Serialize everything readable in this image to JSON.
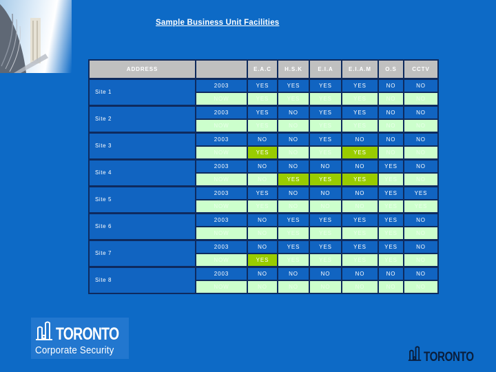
{
  "slide": {
    "title": "Sample Business Unit Facilities",
    "colors": {
      "background": "#0d6ac6",
      "cell_blue": "#1164c1",
      "now_green": "#ccffcc",
      "highlight_green": "#99cc00",
      "header_gray": "#c0c0c0",
      "border_navy": "#0e2a5e"
    }
  },
  "table": {
    "headers": [
      "ADDRESS",
      "",
      "E.A.C",
      "H.S.K",
      "E.I.A",
      "E.I.A.M",
      "O.S",
      "CCTV"
    ],
    "row_labels": {
      "year": "2003",
      "now": "NOW"
    },
    "sites": [
      {
        "name": "Site 1",
        "y2003": [
          "YES",
          "YES",
          "YES",
          "YES",
          "NO",
          "NO"
        ],
        "now": [
          "YES",
          "YES",
          "YES",
          "YES",
          "NO",
          "NO"
        ],
        "now_highlight": [
          false,
          false,
          false,
          false,
          false,
          false
        ]
      },
      {
        "name": "Site 2",
        "y2003": [
          "YES",
          "NO",
          "YES",
          "YES",
          "NO",
          "NO"
        ],
        "now": [
          "YES",
          "NO",
          "YES",
          "YES",
          "NO",
          "NO"
        ],
        "now_highlight": [
          false,
          false,
          false,
          false,
          false,
          false
        ]
      },
      {
        "name": "Site 3",
        "y2003": [
          "NO",
          "NO",
          "YES",
          "NO",
          "NO",
          "NO"
        ],
        "now": [
          "YES",
          "NO",
          "YES",
          "YES",
          "NO",
          "NO"
        ],
        "now_highlight": [
          true,
          false,
          false,
          true,
          false,
          false
        ]
      },
      {
        "name": "Site 4",
        "y2003": [
          "NO",
          "NO",
          "NO",
          "NO",
          "YES",
          "NO"
        ],
        "now": [
          "NO",
          "YES",
          "YES",
          "YES",
          "YES",
          "NO"
        ],
        "now_highlight": [
          false,
          true,
          true,
          true,
          false,
          false
        ]
      },
      {
        "name": "Site 5",
        "y2003": [
          "YES",
          "NO",
          "NO",
          "NO",
          "YES",
          "YES"
        ],
        "now": [
          "YES",
          "NO",
          "NO",
          "NO",
          "YES",
          "YES"
        ],
        "now_highlight": [
          false,
          false,
          false,
          false,
          false,
          false
        ]
      },
      {
        "name": "Site 6",
        "y2003": [
          "NO",
          "YES",
          "YES",
          "YES",
          "YES",
          "NO"
        ],
        "now": [
          "NO",
          "YES",
          "YES",
          "YES",
          "YES",
          "NO"
        ],
        "now_highlight": [
          false,
          false,
          false,
          false,
          false,
          false
        ]
      },
      {
        "name": "Site 7",
        "y2003": [
          "NO",
          "YES",
          "YES",
          "YES",
          "YES",
          "NO"
        ],
        "now": [
          "YES",
          "YES",
          "YES",
          "YES",
          "YES",
          "NO"
        ],
        "now_highlight": [
          true,
          false,
          false,
          false,
          false,
          false
        ]
      },
      {
        "name": "Site 8",
        "y2003": [
          "NO",
          "NO",
          "NO",
          "NO",
          "NO",
          "NO"
        ],
        "now": [
          "NO",
          "NO",
          "NO",
          "NO",
          "NO",
          "NO"
        ],
        "now_highlight": [
          false,
          false,
          false,
          false,
          false,
          false
        ]
      }
    ]
  },
  "footer": {
    "left_logo": {
      "title": "TORONTO",
      "subtitle": "Corporate Security"
    },
    "right_logo": {
      "title": "TORONTO"
    }
  }
}
